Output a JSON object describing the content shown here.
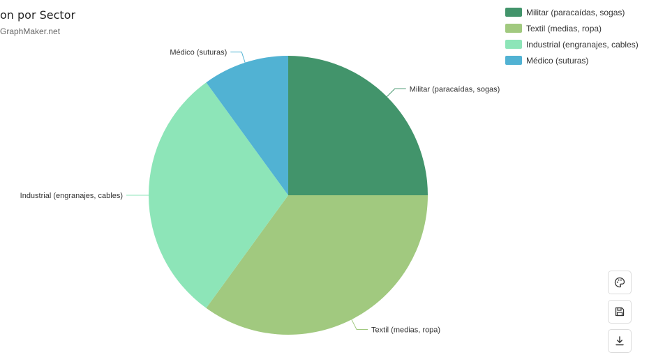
{
  "header": {
    "title": "on por Sector",
    "subtitle": "GraphMaker.net"
  },
  "chart_data": {
    "type": "pie",
    "title": "on por Sector",
    "labels": [
      "Militar (paracaídas, sogas)",
      "Textil (medias, ropa)",
      "Industrial (engranajes, cables)",
      "Médico (suturas)"
    ],
    "values": [
      25,
      35,
      30,
      10
    ],
    "colors": [
      "#42946b",
      "#a1c97f",
      "#8de5b8",
      "#51b2d3"
    ],
    "legend_position": "top-right"
  },
  "toolbar": {
    "icons": [
      "palette-icon",
      "save-icon",
      "download-icon"
    ]
  }
}
